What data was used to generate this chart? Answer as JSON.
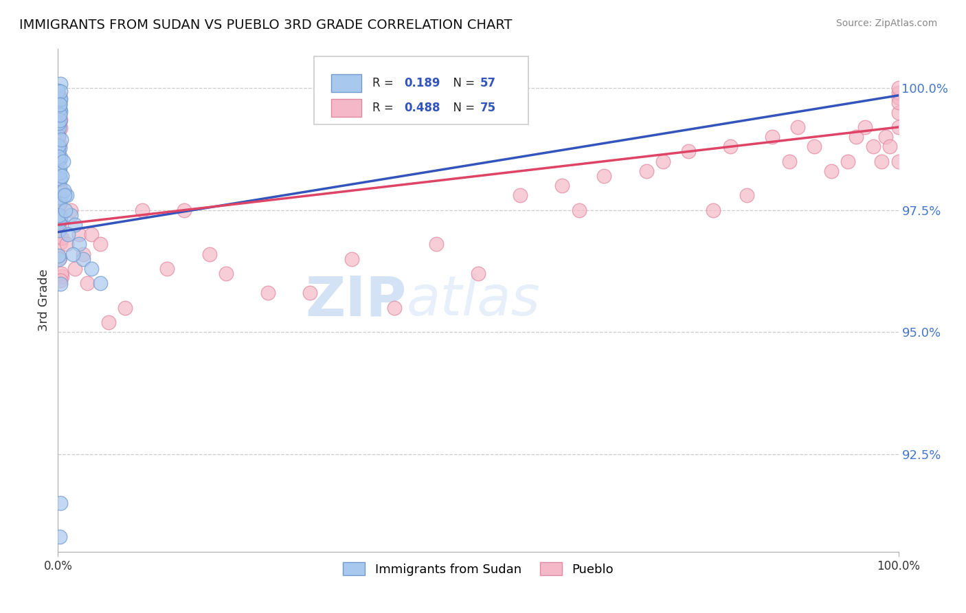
{
  "title": "IMMIGRANTS FROM SUDAN VS PUEBLO 3RD GRADE CORRELATION CHART",
  "source": "Source: ZipAtlas.com",
  "ylabel": "3rd Grade",
  "xlim": [
    0,
    1
  ],
  "ylim": [
    0.905,
    1.008
  ],
  "yticks": [
    0.925,
    0.95,
    0.975,
    1.0
  ],
  "ytick_labels": [
    "92.5%",
    "95.0%",
    "97.5%",
    "100.0%"
  ],
  "blue_R": 0.189,
  "blue_N": 57,
  "pink_R": 0.488,
  "pink_N": 75,
  "blue_color": "#a8c8ee",
  "pink_color": "#f5b8c8",
  "blue_edge_color": "#7099cc",
  "pink_edge_color": "#e088a0",
  "blue_line_color": "#3355bb",
  "pink_line_color": "#dd4466",
  "legend_blue_label": "Immigrants from Sudan",
  "legend_pink_label": "Pueblo",
  "R_N_color": "#3355bb",
  "label_color": "#222222",
  "tick_color": "#4477cc",
  "watermark_zip_color": "#c8ddf5",
  "watermark_atlas_color": "#d5e8f8",
  "blue_trend_start_y": 0.9705,
  "blue_trend_end_y": 0.9985,
  "pink_trend_start_y": 0.972,
  "pink_trend_end_y": 0.992
}
